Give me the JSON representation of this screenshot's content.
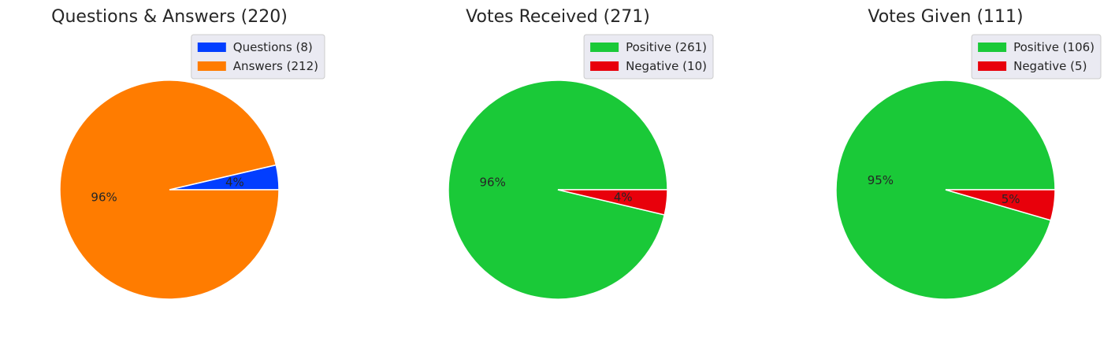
{
  "chart_data": [
    {
      "type": "pie",
      "title": "Questions & Answers (220)",
      "legend_position": "top-right",
      "slices": [
        {
          "label": "Questions (8)",
          "value": 8,
          "pct_label": "4%",
          "color": "#023eff"
        },
        {
          "label": "Answers (212)",
          "value": 212,
          "pct_label": "96%",
          "color": "#ff7c00"
        }
      ]
    },
    {
      "type": "pie",
      "title": "Votes Received (271)",
      "legend_position": "top-right",
      "slices": [
        {
          "label": "Positive (261)",
          "value": 261,
          "pct_label": "96%",
          "color": "#1ac938"
        },
        {
          "label": "Negative (10)",
          "value": 10,
          "pct_label": "4%",
          "color": "#e8000b"
        }
      ]
    },
    {
      "type": "pie",
      "title": "Votes Given (111)",
      "legend_position": "top-right",
      "slices": [
        {
          "label": "Positive (106)",
          "value": 106,
          "pct_label": "95%",
          "color": "#1ac938"
        },
        {
          "label": "Negative (5)",
          "value": 5,
          "pct_label": "5%",
          "color": "#e8000b"
        }
      ]
    }
  ]
}
